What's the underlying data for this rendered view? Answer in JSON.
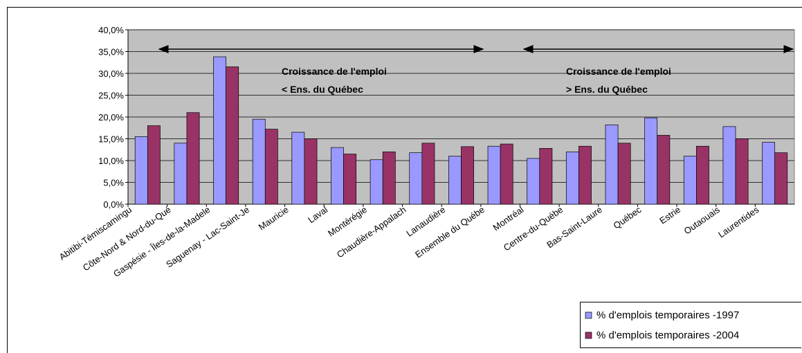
{
  "chart_data": {
    "type": "bar",
    "categories": [
      "Abitibi-Témiscamingu",
      "Côte-Nord & Nord-du-Qué",
      "Gaspésie - Îles-de-la-Madele",
      "Saguenay - Lac-Saint-Je",
      "Mauricie",
      "Laval",
      "Montérégie",
      "Chaudière-Appalach",
      "Lanaudière",
      "Ensemble du Québe",
      "Montréal",
      "Centre-du-Québe",
      "Bas-Saint-Laure",
      "Québec",
      "Estrie",
      "Outaouais",
      "Laurentides"
    ],
    "series": [
      {
        "name": "% d'emplois temporaires -1997",
        "color": "#9999ff",
        "values": [
          15.5,
          14.0,
          33.8,
          19.5,
          16.5,
          13.0,
          10.2,
          11.8,
          11.0,
          13.3,
          10.5,
          12.0,
          18.2,
          19.8,
          11.0,
          17.8,
          14.2
        ]
      },
      {
        "name": "% d'emplois temporaires -2004",
        "color": "#993366",
        "values": [
          18.0,
          21.0,
          31.5,
          17.2,
          15.0,
          11.5,
          12.0,
          14.0,
          13.2,
          13.8,
          12.8,
          13.3,
          14.0,
          15.8,
          13.3,
          15.0,
          11.8
        ]
      }
    ],
    "ylim": [
      0,
      40
    ],
    "yticks": [
      {
        "value": 0,
        "label": "0,0%"
      },
      {
        "value": 5,
        "label": "5,0%"
      },
      {
        "value": 10,
        "label": "10,0%"
      },
      {
        "value": 15,
        "label": "15,0%"
      },
      {
        "value": 20,
        "label": "20,0%"
      },
      {
        "value": 25,
        "label": "25,0%"
      },
      {
        "value": 30,
        "label": "30,0%"
      },
      {
        "value": 35,
        "label": "35,0%"
      },
      {
        "value": 40,
        "label": "40,0%"
      }
    ],
    "grid": true,
    "legend": "bottom-right",
    "annotations": [
      "Croissance de l'emploi",
      "< Ens. du Québec",
      "Croissance de l'emploi",
      "> Ens. du Québec"
    ]
  }
}
